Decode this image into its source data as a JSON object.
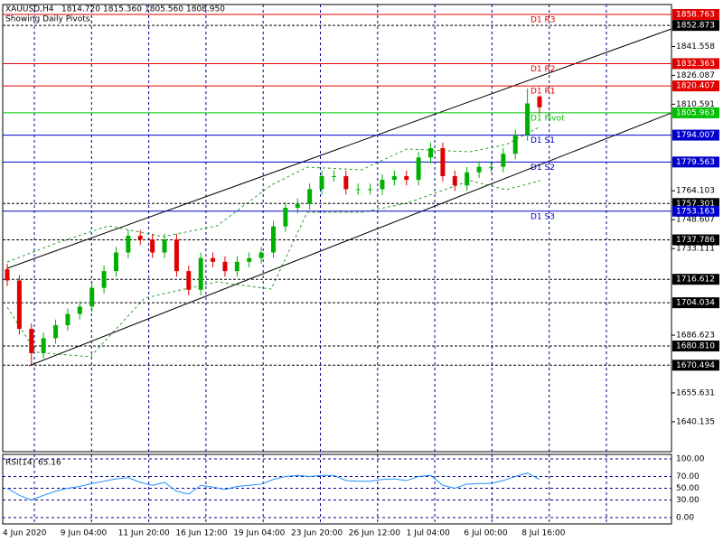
{
  "chart_data": {
    "type": "candlestick",
    "title": "XAUUSD,H4",
    "header_values": [
      "1814.720",
      "1815.360",
      "1805.560",
      "1808.950"
    ],
    "subtitle": "Showing Daily Pivots.",
    "ylim": [
      1624.1,
      1864.1
    ],
    "yticks": [
      1841.558,
      1826.087,
      1810.591,
      1764.103,
      1748.607,
      1733.111,
      1686.623,
      1655.631,
      1640.135
    ],
    "up_color": "#00b000",
    "down_color": "#e00000",
    "open": [
      1722,
      1716,
      1690,
      1677,
      1685,
      1692,
      1698,
      1702,
      1712,
      1721,
      1731,
      1740,
      1738,
      1731,
      1738,
      1721,
      1711,
      1728,
      1726,
      1721,
      1726,
      1728,
      1731,
      1745,
      1755,
      1757,
      1765,
      1772,
      1772,
      1765,
      1765,
      1765,
      1770,
      1772,
      1770,
      1782,
      1787,
      1772,
      1767,
      1774,
      1777,
      1777,
      1784,
      1794,
      1814.72
    ],
    "high": [
      1725,
      1719,
      1693,
      1688,
      1695,
      1701,
      1705,
      1715,
      1724,
      1734,
      1743,
      1743,
      1741,
      1741,
      1741,
      1724,
      1731,
      1731,
      1729,
      1729,
      1731,
      1734,
      1748,
      1758,
      1760,
      1768,
      1775,
      1775,
      1775,
      1768,
      1768,
      1773,
      1775,
      1775,
      1785,
      1790,
      1790,
      1775,
      1777,
      1780,
      1780,
      1787,
      1797,
      1819,
      1815.36
    ],
    "low": [
      1713,
      1687,
      1670.5,
      1674,
      1682,
      1689,
      1695,
      1699,
      1709,
      1718,
      1728,
      1735,
      1728,
      1728,
      1718,
      1708,
      1708,
      1723,
      1718,
      1718,
      1723,
      1725,
      1728,
      1742,
      1752,
      1754,
      1762,
      1769,
      1762,
      1762,
      1762,
      1762,
      1767,
      1767,
      1767,
      1779,
      1769,
      1764,
      1764,
      1771,
      1774,
      1774,
      1781,
      1791,
      1805.56
    ],
    "close": [
      1716,
      1690,
      1677,
      1685,
      1692,
      1698,
      1702,
      1712,
      1721,
      1731,
      1740,
      1738,
      1731,
      1738,
      1721,
      1711,
      1728,
      1726,
      1721,
      1726,
      1728,
      1731,
      1745,
      1755,
      1757,
      1765,
      1772,
      1772,
      1765,
      1765,
      1765,
      1770,
      1772,
      1770,
      1782,
      1787,
      1772,
      1767,
      1774,
      1777,
      1777,
      1784,
      1794,
      1811,
      1808.95
    ],
    "pivots": [
      {
        "name": "D1 R3",
        "value": 1858.763,
        "color": "#e00000"
      },
      {
        "name": "D1 R2",
        "value": 1832.363,
        "color": "#e00000"
      },
      {
        "name": "D1 R1",
        "value": 1820.407,
        "color": "#e00000"
      },
      {
        "name": "D1 Pivot",
        "value": 1805.963,
        "color": "#00c000"
      },
      {
        "name": "D1 S1",
        "value": 1794.007,
        "color": "#0000cc"
      },
      {
        "name": "D1 S2",
        "value": 1779.563,
        "color": "#0000cc"
      },
      {
        "name": "D1 S3",
        "value": 1753.163,
        "color": "#0000cc"
      }
    ],
    "levels": [
      1852.873,
      1757.301,
      1737.786,
      1716.612,
      1704.034,
      {
        "value": 1680.81,
        "label": "1680.810"
      },
      1670.494
    ],
    "level_color": "#000000",
    "x_labels": [
      "4 Jun 2020",
      "9 Jun 04:00",
      "11 Jun 20:00",
      "16 Jun 12:00",
      "19 Jun 04:00",
      "23 Jun 20:00",
      "26 Jun 12:00",
      "1 Jul 04:00",
      "6 Jul 00:00",
      "8 Jul 16:00"
    ],
    "rsi": {
      "label": "RSI(14) 65.16",
      "color": "#1e90ff",
      "ylim": [
        -10.8,
        107.7
      ],
      "yticks": [
        {
          "value": 100,
          "label": "100.00"
        },
        {
          "value": 70,
          "label": "70.00"
        },
        {
          "value": 50,
          "label": "50.00"
        },
        {
          "value": 30,
          "label": "30.00"
        },
        {
          "value": 0,
          "label": "0.00"
        }
      ],
      "values": [
        50,
        38,
        30,
        38,
        45,
        50,
        53,
        58,
        62,
        66,
        68,
        60,
        55,
        60,
        45,
        40,
        55,
        52,
        48,
        53,
        55,
        57,
        65,
        70,
        72,
        70,
        72,
        72,
        63,
        62,
        62,
        65,
        66,
        63,
        70,
        72,
        55,
        50,
        57,
        58,
        58,
        63,
        70,
        76,
        65.16
      ]
    }
  }
}
